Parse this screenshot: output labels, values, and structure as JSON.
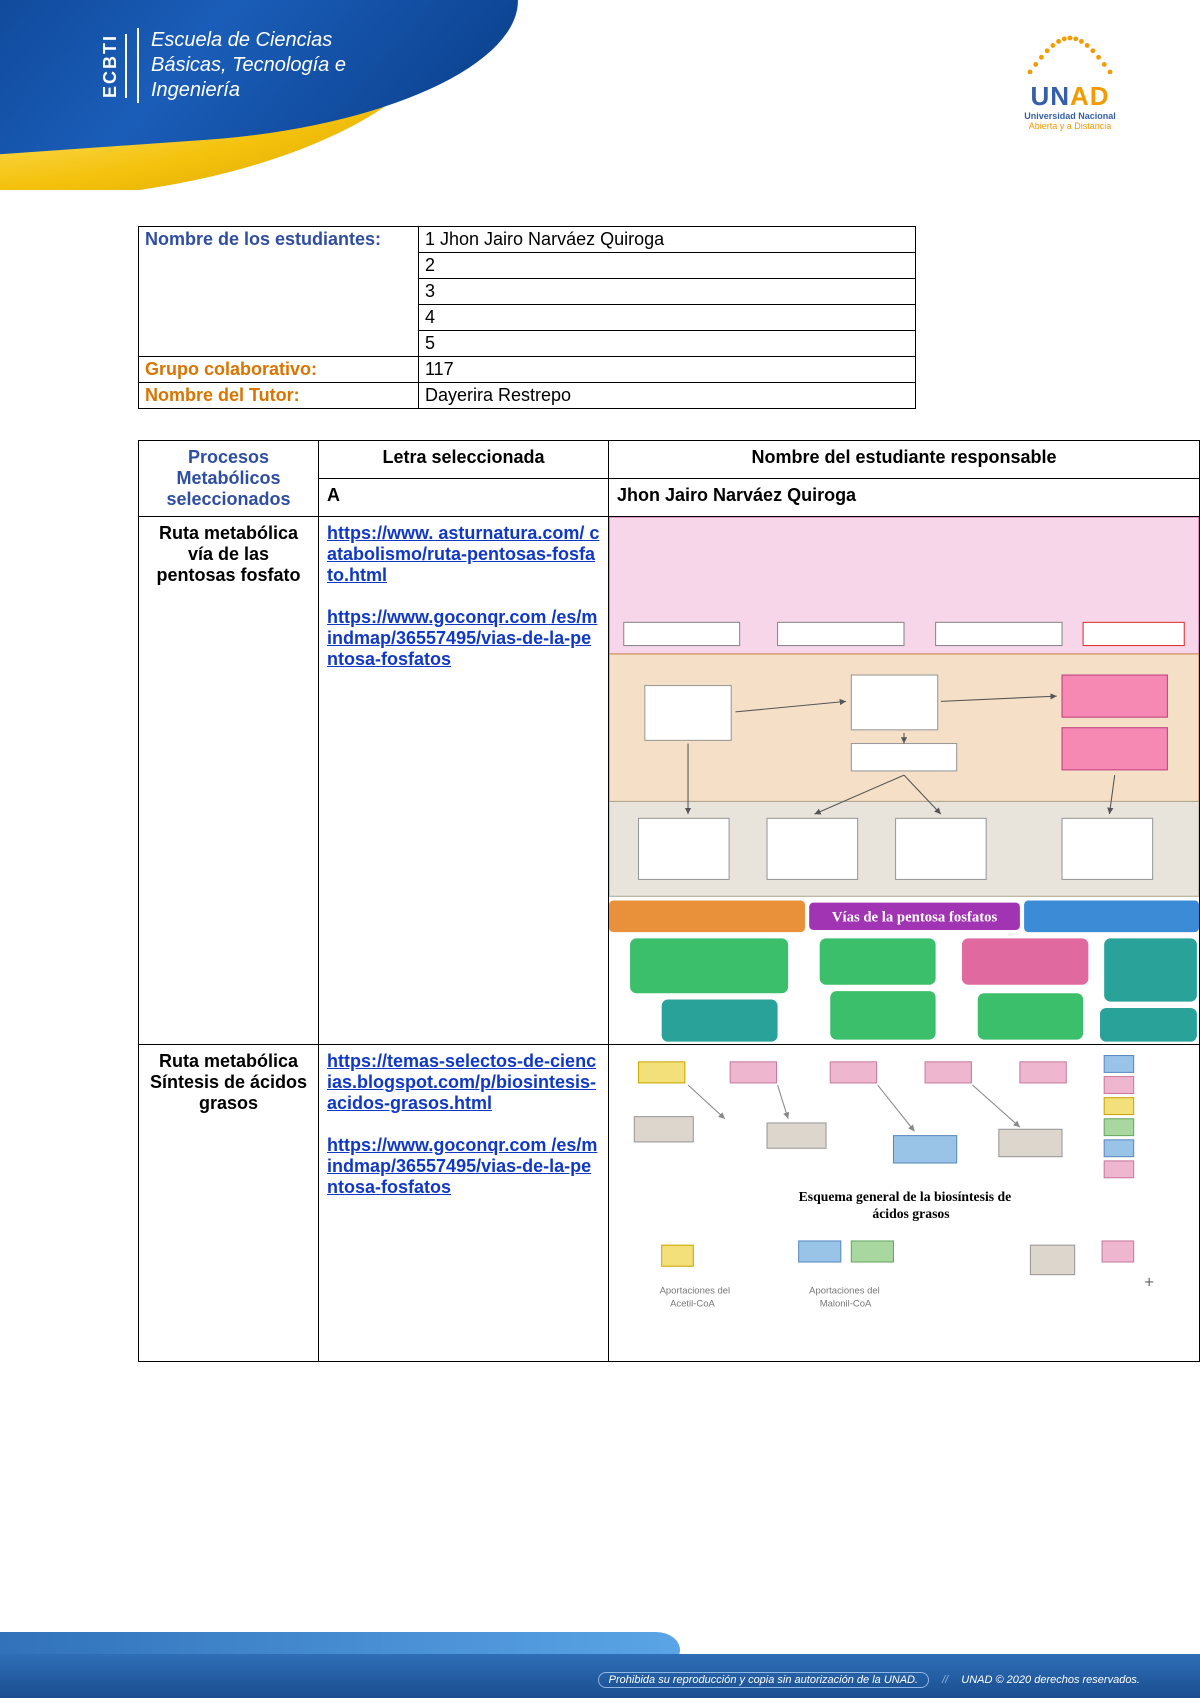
{
  "header": {
    "ecbti_vert": "ECBTI",
    "ecbti_lines": [
      "Escuela de Ciencias",
      "Básicas, Tecnología e",
      "Ingeniería"
    ],
    "swoosh_blue": "#1a5db8",
    "swoosh_yellow": "#f4c20d"
  },
  "unad": {
    "letters": [
      "U",
      "N",
      "A",
      "D"
    ],
    "sub1": "Universidad Nacional",
    "sub2": "Abierta y a Distancia",
    "arc_dot_color": "#f59a00",
    "arc_dot_count": 15
  },
  "table1": {
    "rows": [
      {
        "label": "Nombre de los estudiantes:",
        "label_color": "#2f4ea1",
        "values": [
          "1 Jhon Jairo Narváez Quiroga",
          "2",
          "3",
          "4",
          "5"
        ]
      },
      {
        "label": "Grupo colaborativo:",
        "label_color": "#d97400",
        "values": [
          "117"
        ]
      },
      {
        "label": "Nombre del Tutor:",
        "label_color": "#d97400",
        "values": [
          "Dayerira Restrepo"
        ]
      }
    ]
  },
  "table2": {
    "header_processes": "Procesos Metabólicos seleccionados",
    "header_letter": "Letra seleccionada",
    "header_student": "Nombre del estudiante responsable",
    "letter_value": "A",
    "student_value": "Jhon Jairo Narváez Quiroga",
    "rows": [
      {
        "route": "Ruta metabólica vía de las pentosas fosfato",
        "links": [
          "https://www. asturnatura.com/ catabolismo/ruta-pentosas-fosfato.html",
          "https://www.goconqr.com /es/mindmap/36557495/vias-de-la-pentosa-fosfatos"
        ],
        "diagram_caption": "Vías de la pentosa fosfatos",
        "diagram": {
          "top_bg": "#f7d6ea",
          "mid_bg": "#f5dfc7",
          "lower_bg": "#e8e4dc",
          "mind_title_bg": "#a134b3",
          "mind_title_color": "#ffffff",
          "mind_box_green": "#3bbf6a",
          "mind_box_teal": "#29a39a",
          "mind_box_pink": "#e06aa0",
          "mind_box_orange": "#e8903a",
          "mind_box_blue": "#3c8bd6"
        }
      },
      {
        "route": "Ruta metabólica Síntesis de ácidos grasos",
        "links": [
          "https://temas-selectos-de-ciencias.blogspot.com/p/biosintesis-acidos-grasos.html",
          "https://www.goconqr.com /es/mindmap/36557495/vias-de-la-pentosa-fosfatos"
        ],
        "diagram_caption": "Esquema general de la biosíntesis de ácidos grasos",
        "diagram": {
          "bg": "#ffffff",
          "box_yellow": "#f4e07a",
          "box_pink": "#eeb6cf",
          "box_blue": "#9ac3e8",
          "box_green": "#a8d8a0",
          "sub1": "Aportaciones del Acetil-CoA",
          "sub2": "Aportaciones del Malonil-CoA"
        }
      }
    ]
  },
  "footer": {
    "left": "Prohibida su reproducción y copia sin autorización de la UNAD.",
    "right": "UNAD © 2020 derechos reservados.",
    "bar_color": "#1a4d8f"
  }
}
